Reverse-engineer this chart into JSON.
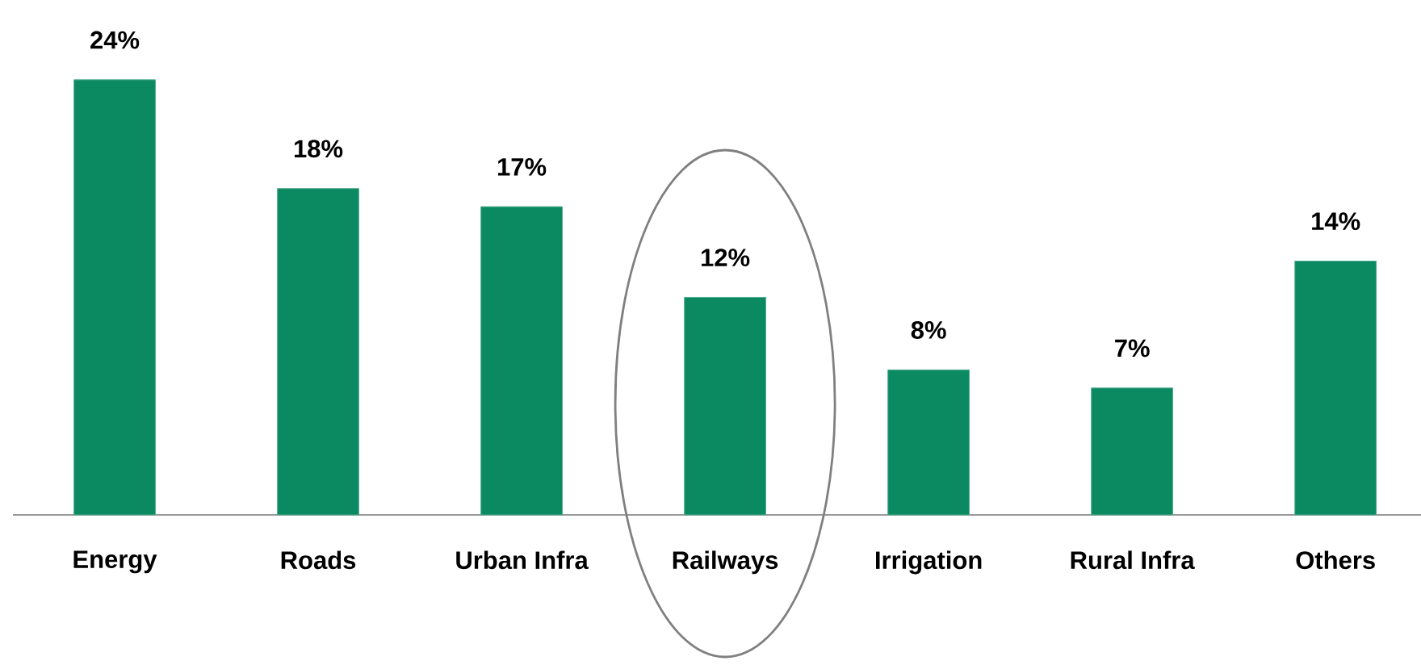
{
  "chart_data": {
    "type": "bar",
    "categories": [
      "Energy",
      "Roads",
      "Urban Infra",
      "Railways",
      "Irrigation",
      "Rural Infra",
      "Others"
    ],
    "values": [
      24,
      18,
      17,
      12,
      8,
      7,
      14
    ],
    "value_labels": [
      "24%",
      "18%",
      "17%",
      "12%",
      "8%",
      "7%",
      "14%"
    ],
    "color": "#0b8a62"
  }
}
